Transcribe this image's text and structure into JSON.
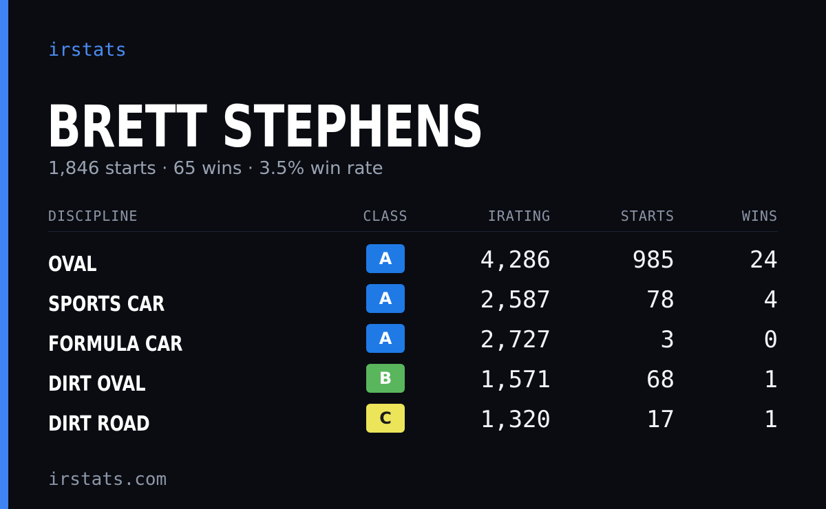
{
  "brand": "irstats",
  "driver": {
    "name": "BRETT STEPHENS",
    "summary": "1,846 starts · 65 wins · 3.5% win rate"
  },
  "table": {
    "headers": {
      "discipline": "DISCIPLINE",
      "class": "CLASS",
      "irating": "IRATING",
      "starts": "STARTS",
      "wins": "WINS"
    },
    "rows": [
      {
        "discipline": "OVAL",
        "class": "A",
        "class_color": "#1f7ae6",
        "class_text_color": "#ffffff",
        "irating": "4,286",
        "starts": "985",
        "wins": "24"
      },
      {
        "discipline": "SPORTS CAR",
        "class": "A",
        "class_color": "#1f7ae6",
        "class_text_color": "#ffffff",
        "irating": "2,587",
        "starts": "78",
        "wins": "4"
      },
      {
        "discipline": "FORMULA CAR",
        "class": "A",
        "class_color": "#1f7ae6",
        "class_text_color": "#ffffff",
        "irating": "2,727",
        "starts": "3",
        "wins": "0"
      },
      {
        "discipline": "DIRT OVAL",
        "class": "B",
        "class_color": "#5ab65c",
        "class_text_color": "#ffffff",
        "irating": "1,571",
        "starts": "68",
        "wins": "1"
      },
      {
        "discipline": "DIRT ROAD",
        "class": "C",
        "class_color": "#ece55a",
        "class_text_color": "#1a1a1a",
        "irating": "1,320",
        "starts": "17",
        "wins": "1"
      }
    ]
  },
  "footer": {
    "url": "irstats.com"
  },
  "colors": {
    "background": "#0a0c12",
    "accent": "#3f84f2",
    "brand": "#4a8cf2"
  }
}
